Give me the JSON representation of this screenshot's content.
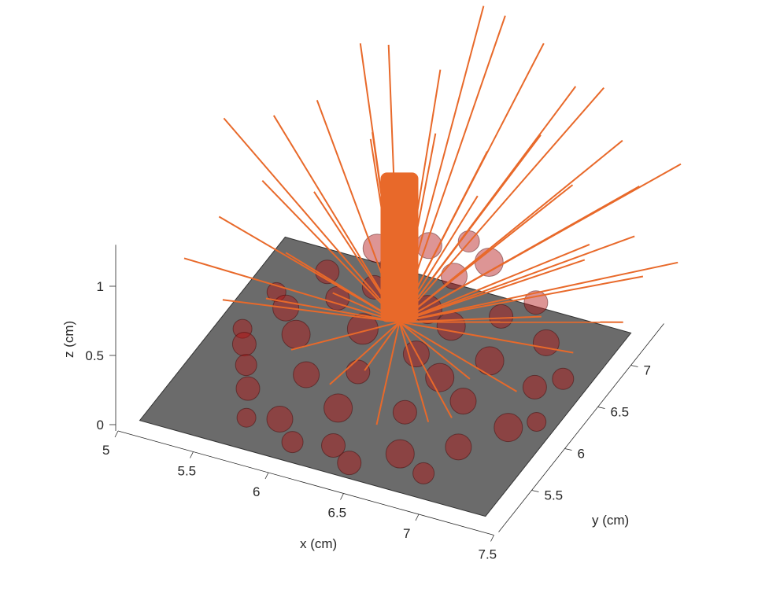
{
  "chart_data": {
    "type": "scatter3d",
    "xlabel": "x (cm)",
    "ylabel": "y (cm)",
    "zlabel": "z (cm)",
    "xlim": [
      5,
      7.5
    ],
    "ylim": [
      5,
      7.5
    ],
    "zlim": [
      0,
      1.3
    ],
    "xticks": [
      "5",
      "5.5",
      "6",
      "6.5",
      "7",
      "7.5"
    ],
    "yticks": [
      "5.5",
      "6",
      "6.5",
      "7"
    ],
    "zticks": [
      "0",
      "0.5",
      "1"
    ],
    "grid": false,
    "colors": {
      "plane": "#6b6b6b",
      "spheres": "#b41414",
      "lines": "#e8692a",
      "axis": "#262626"
    },
    "plane": {
      "x": [
        5.1,
        7.4
      ],
      "y": [
        5.1,
        7.3
      ],
      "z": 0
    },
    "spheres": [
      [
        5.4,
        6.0,
        0.1,
        0.1
      ],
      [
        5.5,
        6.4,
        0.15,
        0.11
      ],
      [
        5.6,
        6.8,
        0.2,
        0.1
      ],
      [
        5.8,
        7.1,
        0.25,
        0.12
      ],
      [
        6.1,
        7.2,
        0.3,
        0.11
      ],
      [
        6.5,
        7.2,
        0.3,
        0.12
      ],
      [
        6.9,
        7.0,
        0.25,
        0.1
      ],
      [
        7.1,
        6.7,
        0.2,
        0.11
      ],
      [
        7.2,
        6.3,
        0.15,
        0.1
      ],
      [
        7.2,
        5.9,
        0.1,
        0.12
      ],
      [
        7.0,
        5.6,
        0.08,
        0.11
      ],
      [
        6.7,
        5.4,
        0.06,
        0.12
      ],
      [
        6.3,
        5.3,
        0.06,
        0.1
      ],
      [
        5.9,
        5.4,
        0.07,
        0.11
      ],
      [
        5.6,
        5.6,
        0.08,
        0.1
      ],
      [
        5.5,
        5.8,
        0.1,
        0.09
      ],
      [
        5.7,
        6.1,
        0.2,
        0.12
      ],
      [
        5.8,
        6.5,
        0.25,
        0.1
      ],
      [
        6.0,
        6.9,
        0.3,
        0.12
      ],
      [
        6.4,
        6.9,
        0.35,
        0.11
      ],
      [
        6.8,
        6.7,
        0.3,
        0.1
      ],
      [
        6.9,
        6.3,
        0.25,
        0.12
      ],
      [
        6.9,
        5.9,
        0.2,
        0.11
      ],
      [
        6.6,
        5.7,
        0.15,
        0.1
      ],
      [
        6.2,
        5.6,
        0.12,
        0.12
      ],
      [
        5.9,
        5.8,
        0.15,
        0.11
      ],
      [
        6.1,
        6.2,
        0.3,
        0.13
      ],
      [
        6.4,
        6.5,
        0.35,
        0.12
      ],
      [
        6.5,
        6.1,
        0.3,
        0.11
      ],
      [
        6.2,
        5.9,
        0.2,
        0.1
      ],
      [
        6.6,
        6.4,
        0.35,
        0.12
      ],
      [
        6.0,
        6.6,
        0.33,
        0.1
      ],
      [
        6.7,
        6.0,
        0.25,
        0.12
      ],
      [
        5.3,
        6.2,
        0.06,
        0.08
      ],
      [
        5.35,
        6.6,
        0.1,
        0.08
      ],
      [
        7.3,
        6.1,
        0.05,
        0.08
      ],
      [
        6.9,
        5.3,
        0.04,
        0.09
      ],
      [
        6.45,
        5.2,
        0.04,
        0.1
      ],
      [
        6.05,
        5.25,
        0.04,
        0.09
      ],
      [
        5.7,
        5.35,
        0.05,
        0.08
      ],
      [
        7.3,
        6.5,
        0.12,
        0.09
      ],
      [
        6.3,
        7.35,
        0.3,
        0.09
      ],
      [
        5.9,
        7.3,
        0.3,
        0.09
      ]
    ],
    "column": {
      "x": 6.3,
      "y": 6.3,
      "z": [
        0.35,
        1.43
      ]
    },
    "lines": [
      [
        5.2,
        6.9,
        1.15
      ],
      [
        5.0,
        6.6,
        1.25
      ],
      [
        5.1,
        6.3,
        0.75
      ],
      [
        5.0,
        6.0,
        0.6
      ],
      [
        5.3,
        5.9,
        0.45
      ],
      [
        5.4,
        7.1,
        1.2
      ],
      [
        5.7,
        7.5,
        1.45
      ],
      [
        6.0,
        7.6,
        1.3
      ],
      [
        6.2,
        7.8,
        1.7
      ],
      [
        6.6,
        7.8,
        1.55
      ],
      [
        6.9,
        7.6,
        1.45
      ],
      [
        7.3,
        7.4,
        1.3
      ],
      [
        7.5,
        7.2,
        1.15
      ],
      [
        7.6,
        6.9,
        1.0
      ],
      [
        7.7,
        6.8,
        0.8
      ],
      [
        7.7,
        6.5,
        0.65
      ],
      [
        7.5,
        6.2,
        0.55
      ],
      [
        7.3,
        5.8,
        0.45
      ],
      [
        7.0,
        5.5,
        0.35
      ],
      [
        6.8,
        5.6,
        0.2
      ],
      [
        6.5,
        5.5,
        0.15
      ],
      [
        6.1,
        5.7,
        0.2
      ],
      [
        5.8,
        5.8,
        0.3
      ],
      [
        5.5,
        6.1,
        0.4
      ],
      [
        5.6,
        6.6,
        0.9
      ],
      [
        5.8,
        7.0,
        1.1
      ],
      [
        6.1,
        7.3,
        1.05
      ],
      [
        6.4,
        7.4,
        0.95
      ],
      [
        6.8,
        7.3,
        1.25
      ],
      [
        7.1,
        7.1,
        1.1
      ],
      [
        7.3,
        6.9,
        0.85
      ],
      [
        7.2,
        6.4,
        0.6
      ],
      [
        6.9,
        6.0,
        0.3
      ],
      [
        6.2,
        6.0,
        0.15
      ],
      [
        5.9,
        6.2,
        0.5
      ],
      [
        5.3,
        6.5,
        0.95
      ],
      [
        5.6,
        7.3,
        1.55
      ],
      [
        6.3,
        7.9,
        1.6
      ],
      [
        7.0,
        7.8,
        1.35
      ],
      [
        7.6,
        7.6,
        1.1
      ],
      [
        7.8,
        7.1,
        0.75
      ],
      [
        7.4,
        6.6,
        0.95
      ],
      [
        6.6,
        6.8,
        1.05
      ],
      [
        5.9,
        6.8,
        1.3
      ],
      [
        5.5,
        6.4,
        0.55
      ]
    ]
  }
}
